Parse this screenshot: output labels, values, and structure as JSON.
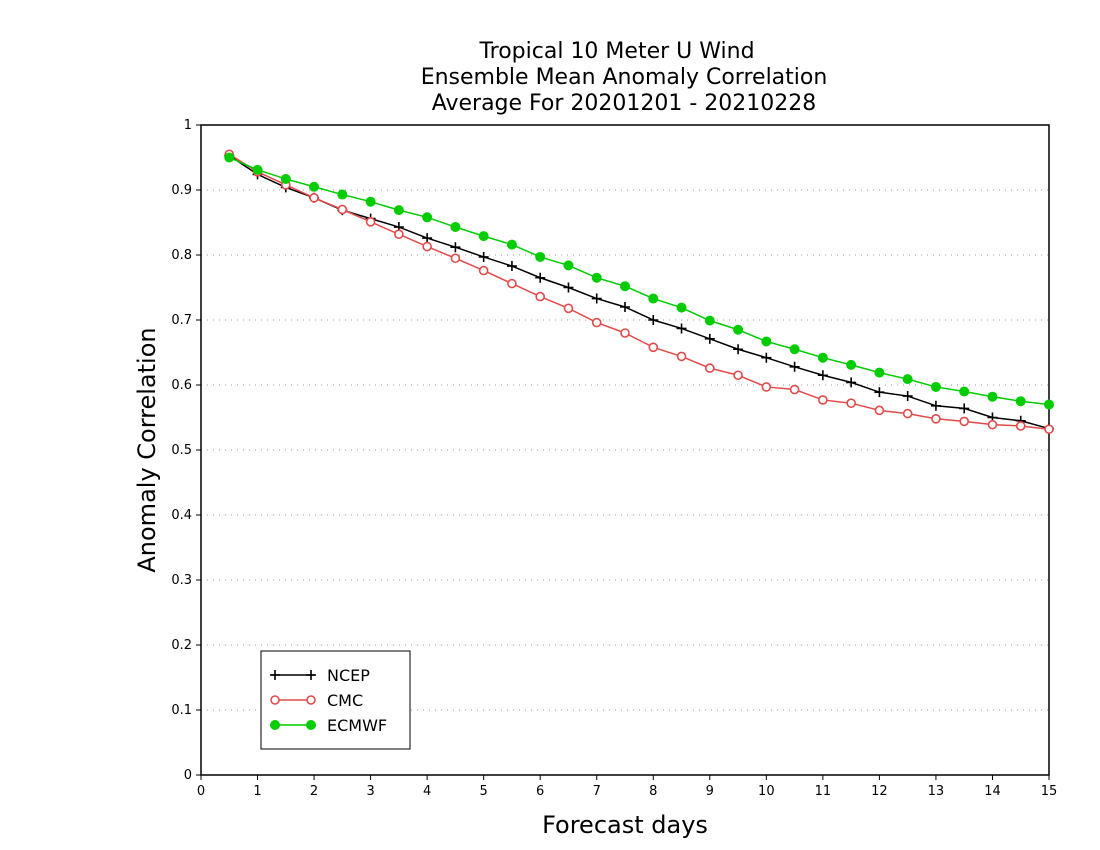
{
  "chart_data": {
    "type": "line",
    "title_lines": [
      "Tropical 10 Meter U Wind",
      "Ensemble Mean Anomaly Correlation",
      "Average For 20201201 - 20210228"
    ],
    "xlabel": "Forecast days",
    "ylabel": "Anomaly Correlation",
    "xlim": [
      0,
      15
    ],
    "ylim": [
      0,
      1
    ],
    "x_ticks": [
      "0",
      "1",
      "2",
      "3",
      "4",
      "5",
      "6",
      "7",
      "8",
      "9",
      "10",
      "11",
      "12",
      "13",
      "14",
      "15"
    ],
    "y_ticks": [
      "0",
      "0.1",
      "0.2",
      "0.3",
      "0.4",
      "0.5",
      "0.6",
      "0.7",
      "0.8",
      "0.9",
      "1"
    ],
    "grid": "horizontal dotted",
    "legend_position": "bottom-left",
    "x": [
      0.5,
      1,
      1.5,
      2,
      2.5,
      3,
      3.5,
      4,
      4.5,
      5,
      5.5,
      6,
      6.5,
      7,
      7.5,
      8,
      8.5,
      9,
      9.5,
      10,
      10.5,
      11,
      11.5,
      12,
      12.5,
      13,
      13.5,
      14,
      14.5,
      15
    ],
    "series": [
      {
        "name": "NCEP",
        "color": "#000000",
        "marker": "plus",
        "values": [
          0.953,
          0.924,
          0.904,
          0.888,
          0.869,
          0.856,
          0.843,
          0.826,
          0.812,
          0.797,
          0.783,
          0.765,
          0.75,
          0.733,
          0.72,
          0.7,
          0.687,
          0.671,
          0.655,
          0.642,
          0.628,
          0.615,
          0.604,
          0.589,
          0.583,
          0.568,
          0.564,
          0.55,
          0.545,
          0.533
        ]
      },
      {
        "name": "CMC",
        "color": "#e24a4a",
        "marker": "open-circle",
        "values": [
          0.955,
          0.928,
          0.908,
          0.888,
          0.87,
          0.851,
          0.832,
          0.813,
          0.795,
          0.776,
          0.756,
          0.736,
          0.718,
          0.696,
          0.68,
          0.658,
          0.644,
          0.626,
          0.615,
          0.597,
          0.593,
          0.577,
          0.572,
          0.561,
          0.556,
          0.548,
          0.544,
          0.539,
          0.537,
          0.532
        ]
      },
      {
        "name": "ECMWF",
        "color": "#00cc00",
        "marker": "filled-circle",
        "values": [
          0.95,
          0.931,
          0.917,
          0.905,
          0.893,
          0.882,
          0.869,
          0.858,
          0.843,
          0.829,
          0.816,
          0.797,
          0.784,
          0.765,
          0.752,
          0.733,
          0.719,
          0.699,
          0.685,
          0.667,
          0.655,
          0.642,
          0.631,
          0.619,
          0.609,
          0.597,
          0.59,
          0.582,
          0.575,
          0.57
        ]
      }
    ]
  }
}
